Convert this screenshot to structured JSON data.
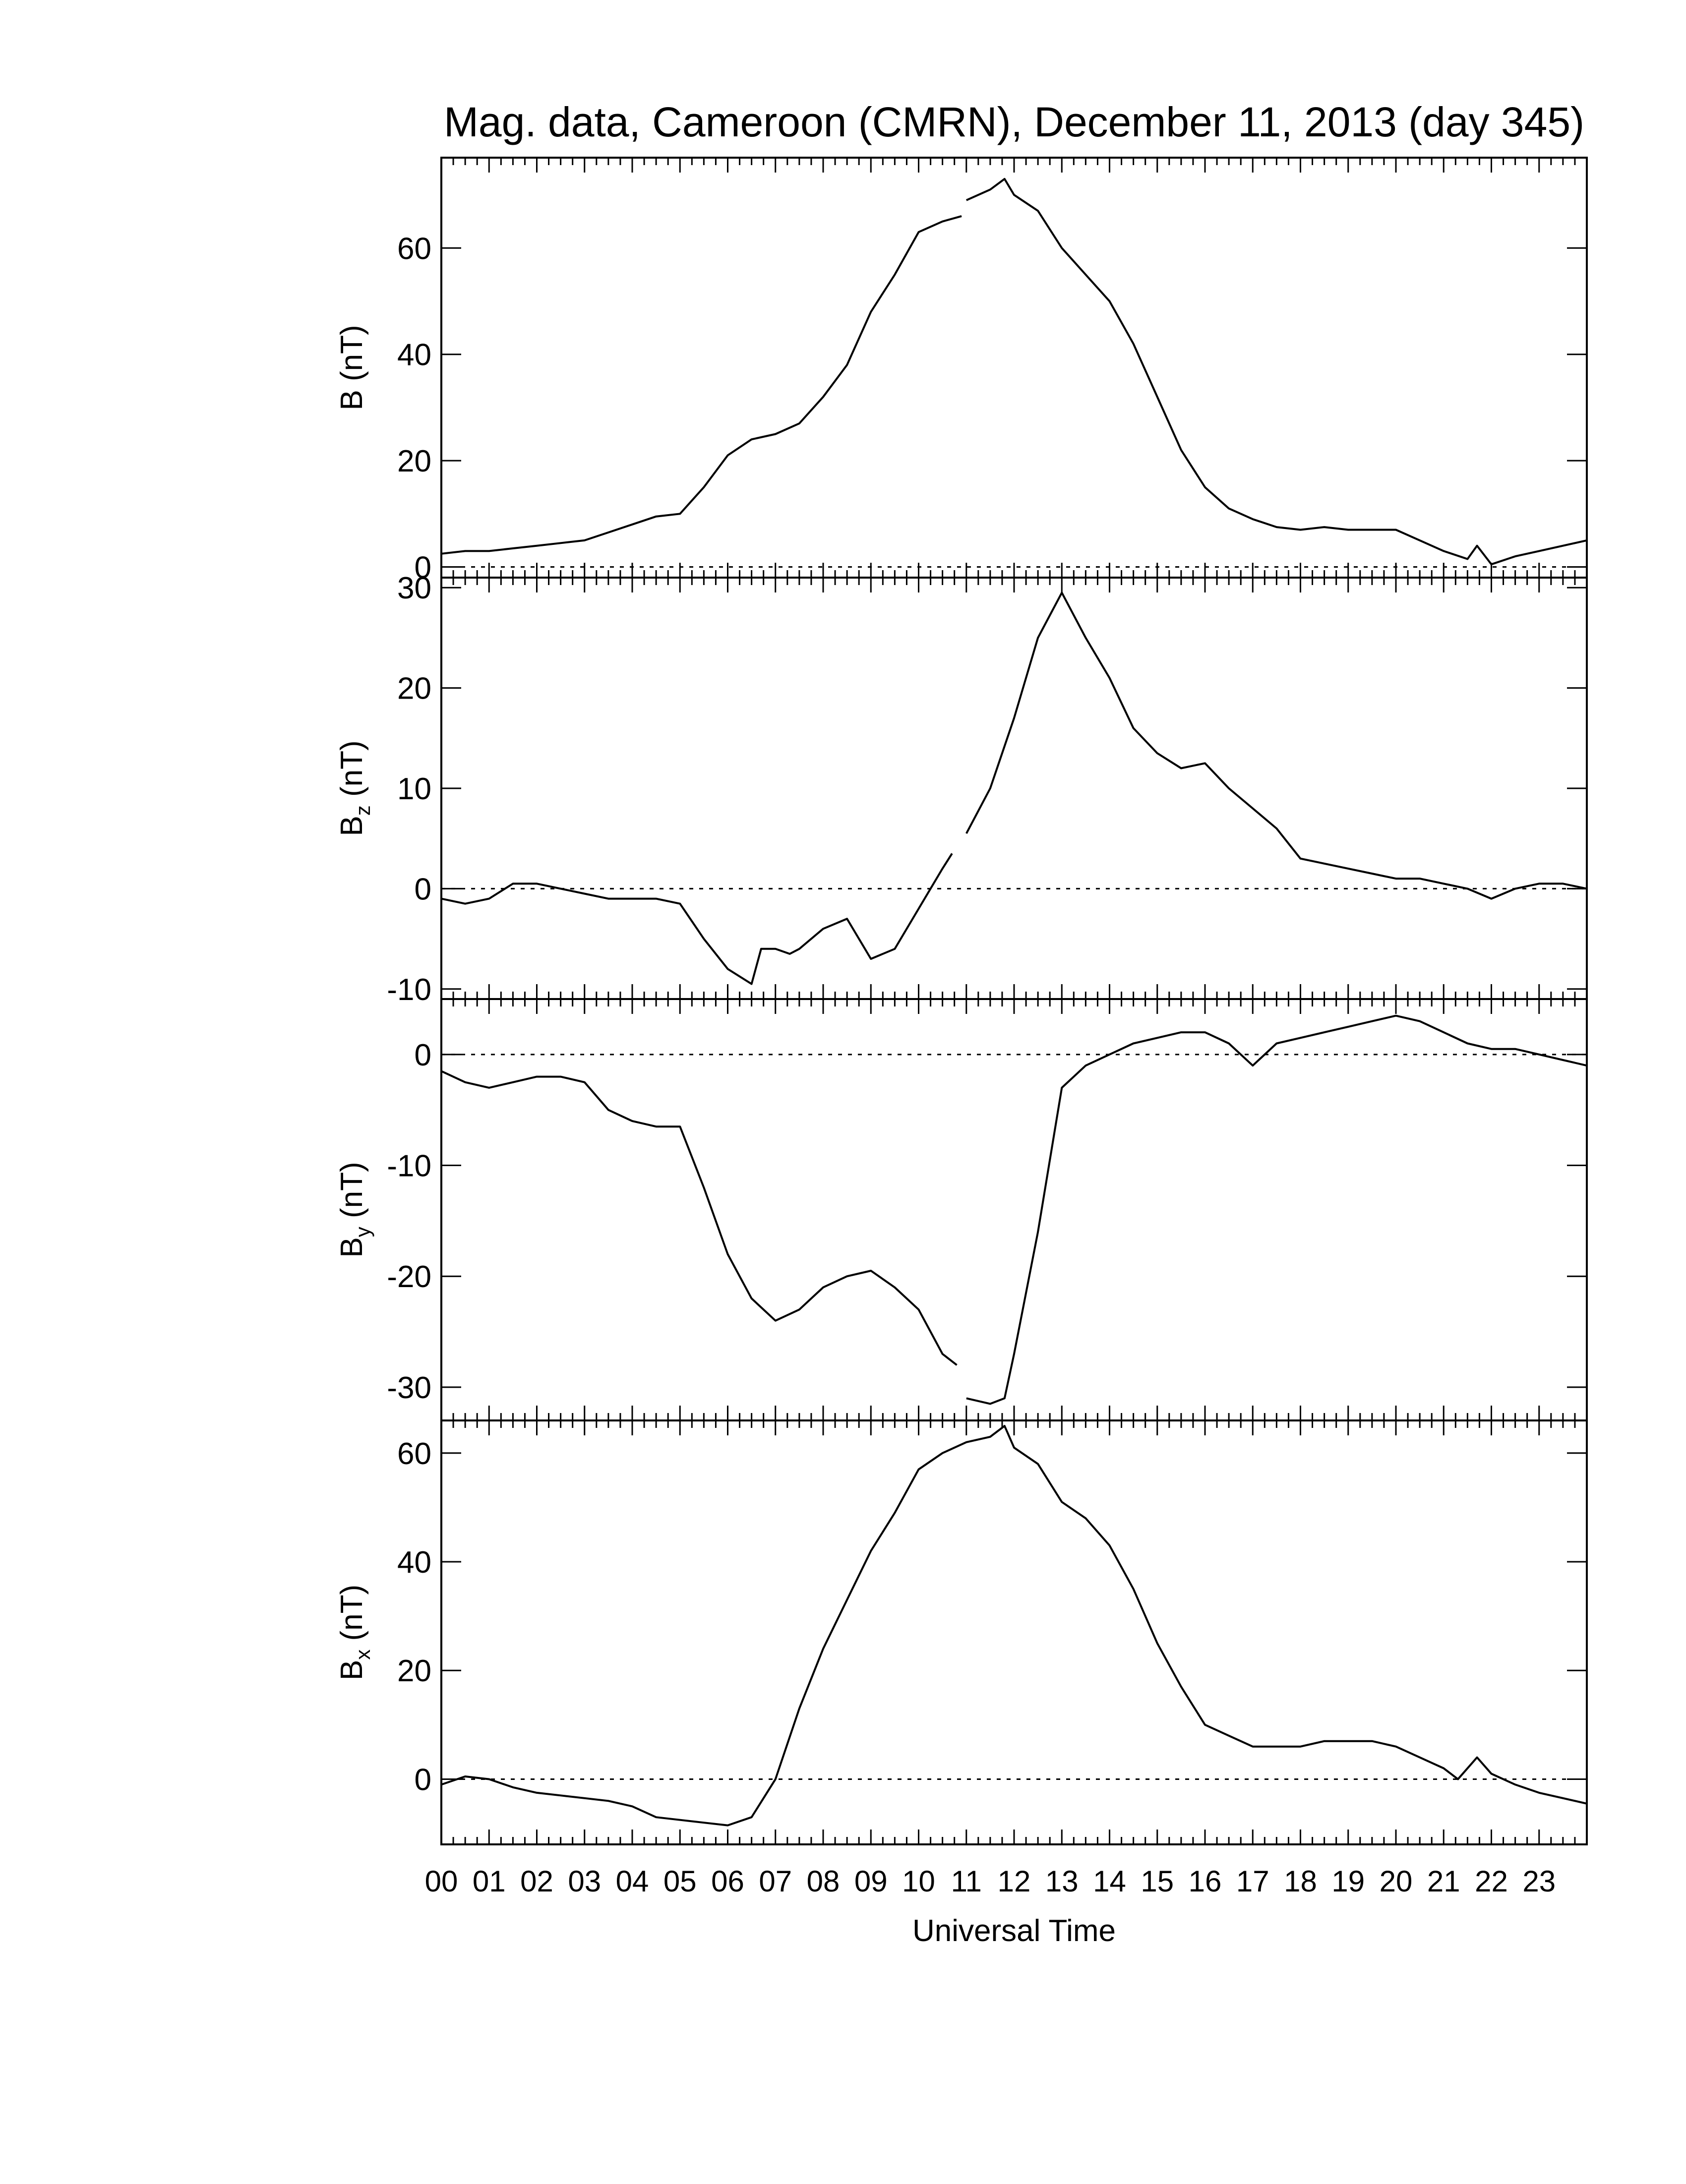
{
  "chart_data": {
    "type": "line",
    "title": "Mag. data, Cameroon (CMRN), December 11, 2013 (day 345)",
    "xlabel": "Universal Time",
    "x_tick_labels": [
      "00",
      "01",
      "02",
      "03",
      "04",
      "05",
      "06",
      "07",
      "08",
      "09",
      "10",
      "11",
      "12",
      "13",
      "14",
      "15",
      "16",
      "17",
      "18",
      "19",
      "20",
      "21",
      "22",
      "23"
    ],
    "xlim": [
      0,
      24
    ],
    "panels": [
      {
        "id": "b",
        "ylabel": "B",
        "ylabel_sub": "",
        "ylabel_unit": "(nT)",
        "ylim": [
          -2,
          77
        ],
        "yticks": [
          0,
          20,
          40,
          60
        ],
        "ytick_labels": [
          "0",
          "20",
          "40",
          "60"
        ],
        "zero_line": true,
        "segments": [
          {
            "x": [
              0,
              0.5,
              1,
              1.5,
              2,
              2.5,
              3,
              3.5,
              4,
              4.5,
              5,
              5.5,
              6,
              6.5,
              7,
              7.5,
              8,
              8.5,
              9,
              9.5,
              10,
              10.5,
              10.9
            ],
            "y": [
              2.5,
              3,
              3,
              3.5,
              4,
              4.5,
              5,
              6.5,
              8,
              9.5,
              10,
              15,
              21,
              24,
              25,
              27,
              32,
              38,
              48,
              55,
              63,
              65,
              66
            ]
          },
          {
            "x": [
              11,
              11.5,
              11.8,
              12,
              12.5,
              13,
              13.5,
              14,
              14.5,
              15,
              15.5,
              16,
              16.5,
              17,
              17.5,
              18,
              18.5,
              19,
              19.5,
              20,
              20.5,
              21,
              21.5,
              21.7,
              22,
              22.5,
              23,
              23.5,
              24
            ],
            "y": [
              69,
              71,
              73,
              70,
              67,
              60,
              55,
              50,
              42,
              32,
              22,
              15,
              11,
              9,
              7.5,
              7,
              7.5,
              7,
              7,
              7,
              5,
              3,
              1.5,
              4,
              0.5,
              2,
              3,
              4,
              5
            ]
          }
        ]
      },
      {
        "id": "bz",
        "ylabel": "B",
        "ylabel_sub": "z",
        "ylabel_unit": "(nT)",
        "ylim": [
          -11,
          31
        ],
        "yticks": [
          -10,
          0,
          10,
          20,
          30
        ],
        "ytick_labels": [
          "-10",
          "0",
          "10",
          "20",
          "30"
        ],
        "zero_line": true,
        "segments": [
          {
            "x": [
              0,
              0.5,
              1,
              1.5,
              2,
              2.5,
              3,
              3.5,
              4,
              4.5,
              5,
              5.5,
              6,
              6.5,
              6.7,
              7,
              7.3,
              7.5,
              8,
              8.5,
              9,
              9.5,
              10,
              10.5,
              10.7
            ],
            "y": [
              -1,
              -1.5,
              -1,
              0.5,
              0.5,
              0,
              -0.5,
              -1,
              -1,
              -1,
              -1.5,
              -5,
              -8,
              -9.5,
              -6,
              -6,
              -6.5,
              -6,
              -4,
              -3,
              -7,
              -6,
              -2,
              2,
              3.5
            ]
          },
          {
            "x": [
              11,
              11.5,
              12,
              12.5,
              13,
              13.5,
              14,
              14.5,
              15,
              15.5,
              16,
              16.5,
              17,
              17.5,
              18,
              18.5,
              19,
              19.5,
              20,
              20.5,
              21,
              21.5,
              22,
              22.5,
              23,
              23.5,
              24
            ],
            "y": [
              5.5,
              10,
              17,
              25,
              29.5,
              25,
              21,
              16,
              13.5,
              12,
              12.5,
              10,
              8,
              6,
              3,
              2.5,
              2,
              1.5,
              1,
              1,
              0.5,
              0,
              -1,
              0,
              0.5,
              0.5,
              0
            ]
          }
        ]
      },
      {
        "id": "by",
        "ylabel": "B",
        "ylabel_sub": "y",
        "ylabel_unit": "(nT)",
        "ylim": [
          -33,
          5
        ],
        "yticks": [
          -30,
          -20,
          -10,
          0
        ],
        "ytick_labels": [
          "-30",
          "-20",
          "-10",
          "0"
        ],
        "zero_line": true,
        "segments": [
          {
            "x": [
              0,
              0.5,
              1,
              1.5,
              2,
              2.5,
              3,
              3.5,
              4,
              4.5,
              5,
              5.5,
              6,
              6.5,
              7,
              7.5,
              8,
              8.5,
              9,
              9.5,
              10,
              10.5,
              10.8
            ],
            "y": [
              -1.5,
              -2.5,
              -3,
              -2.5,
              -2,
              -2,
              -2.5,
              -5,
              -6,
              -6.5,
              -6.5,
              -12,
              -18,
              -22,
              -24,
              -23,
              -21,
              -20,
              -19.5,
              -21,
              -23,
              -27,
              -28
            ]
          },
          {
            "x": [
              11,
              11.5,
              11.8,
              12,
              12.5,
              13,
              13.5,
              14,
              14.5,
              15,
              15.5,
              16,
              16.5,
              17,
              17.5,
              18,
              18.5,
              19,
              19.5,
              20,
              20.5,
              21,
              21.5,
              22,
              22.5,
              23,
              23.5,
              24
            ],
            "y": [
              -31,
              -31.5,
              -31,
              -27,
              -16,
              -3,
              -1,
              0,
              1,
              1.5,
              2,
              2,
              1,
              -1,
              1,
              1.5,
              2,
              2.5,
              3,
              3.5,
              3,
              2,
              1,
              0.5,
              0.5,
              0,
              -0.5,
              -1
            ]
          }
        ]
      },
      {
        "id": "bx",
        "ylabel": "B",
        "ylabel_sub": "x",
        "ylabel_unit": "(nT)",
        "ylim": [
          -12,
          66
        ],
        "yticks": [
          0,
          20,
          40,
          60
        ],
        "ytick_labels": [
          "0",
          "20",
          "40",
          "60"
        ],
        "zero_line": true,
        "segments": [
          {
            "x": [
              0,
              0.5,
              1,
              1.5,
              2,
              2.5,
              3,
              3.5,
              4,
              4.5,
              5,
              5.5,
              6,
              6.5,
              7,
              7.5,
              8,
              8.5,
              9,
              9.5,
              10,
              10.5,
              11,
              11.5,
              11.8,
              12,
              12.5,
              13,
              13.5,
              14,
              14.5,
              15,
              15.5,
              16,
              16.5,
              17,
              17.5,
              18,
              18.5,
              19,
              19.5,
              20,
              20.5,
              21,
              21.3,
              21.7,
              22,
              22.5,
              23,
              23.5,
              24
            ],
            "y": [
              -1,
              0.5,
              0,
              -1.5,
              -2.5,
              -3,
              -3.5,
              -4,
              -5,
              -7,
              -7.5,
              -8,
              -8.5,
              -7,
              0,
              13,
              24,
              33,
              42,
              49,
              57,
              60,
              62,
              63,
              65,
              61,
              58,
              51,
              48,
              43,
              35,
              25,
              17,
              10,
              8,
              6,
              6,
              6,
              7,
              7,
              7,
              6,
              4,
              2,
              0,
              4,
              1,
              -1,
              -2.5,
              -3.5,
              -4.5
            ]
          }
        ]
      }
    ]
  }
}
